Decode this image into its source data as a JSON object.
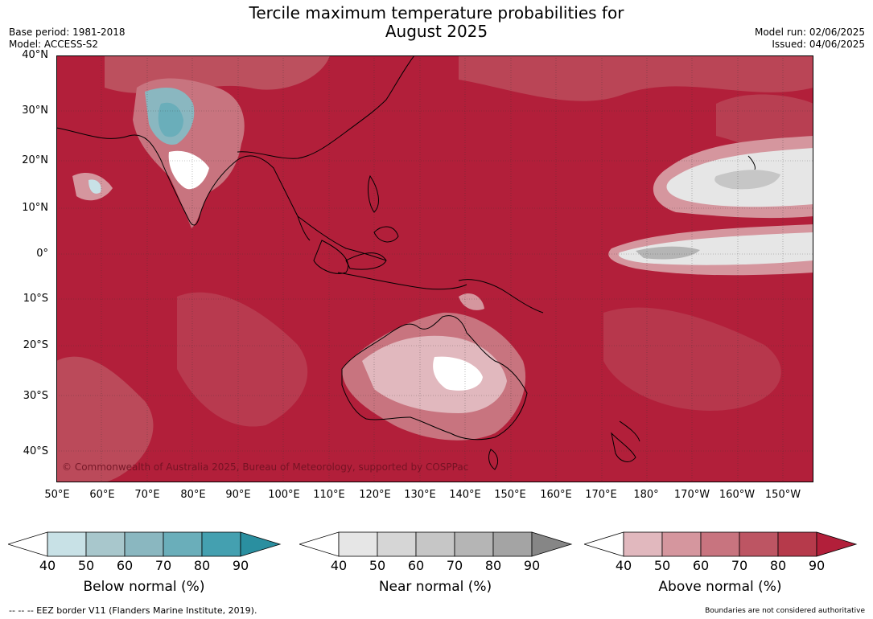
{
  "title_line1": "Tercile maximum temperature probabilities for",
  "title_line2": "August 2025",
  "base_period": "Base period: 1981-2018",
  "model": "Model: ACCESS-S2",
  "model_run": "Model run: 02/06/2025",
  "issued": "Issued: 04/06/2025",
  "lat_labels": [
    "40°N",
    "30°N",
    "20°N",
    "10°N",
    "0°",
    "10°S",
    "20°S",
    "30°S",
    "40°S"
  ],
  "lon_labels": [
    "50°E",
    "60°E",
    "70°E",
    "80°E",
    "90°E",
    "100°E",
    "110°E",
    "120°E",
    "130°E",
    "140°E",
    "150°E",
    "160°E",
    "170°E",
    "180°",
    "170°W",
    "160°W",
    "150°W"
  ],
  "copyright": "© Commonwealth of Australia 2025, Bureau of Meteorology, supported by COSPPac",
  "colorbars": [
    {
      "label": "Below normal (%)",
      "ticks": [
        "40",
        "50",
        "60",
        "70",
        "80",
        "90"
      ],
      "colors": [
        "#ffffff",
        "#c8e1e6",
        "#a8c7cc",
        "#8ab7c0",
        "#6aaeba",
        "#44a0b0",
        "#2a8fa0"
      ]
    },
    {
      "label": "Near normal (%)",
      "ticks": [
        "40",
        "50",
        "60",
        "70",
        "80",
        "90"
      ],
      "colors": [
        "#ffffff",
        "#e6e6e6",
        "#d6d6d6",
        "#c6c6c6",
        "#b5b5b5",
        "#a4a4a4",
        "#868686"
      ]
    },
    {
      "label": "Above normal (%)",
      "ticks": [
        "40",
        "50",
        "60",
        "70",
        "80",
        "90"
      ],
      "colors": [
        "#ffffff",
        "#e1b8be",
        "#d5969e",
        "#c8747f",
        "#bd5563",
        "#b63a4b",
        "#b21f3a"
      ]
    }
  ],
  "eez_note": "--  --  -- EEZ border V11 (Flanders Marine Institute, 2019).",
  "boundaries_note": "Boundaries are not considered authoritative"
}
